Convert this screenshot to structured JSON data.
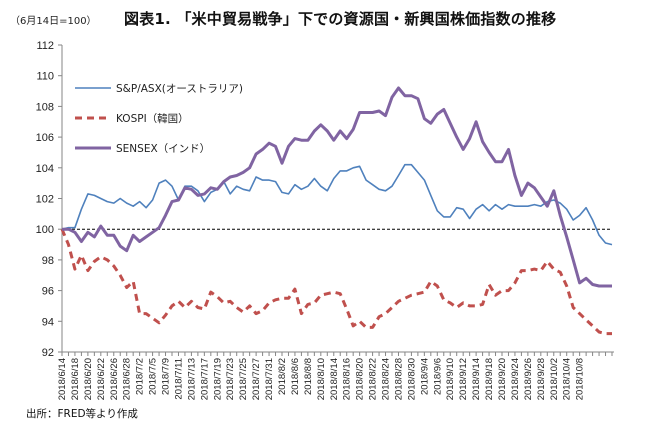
{
  "chart_data": {
    "type": "line",
    "title": "図表1. 「米中貿易戦争」下での資源国・新興国株価指数の推移",
    "subtitle": "（6月14日=100）",
    "source": "出所：FRED等より作成",
    "xlabel": "",
    "ylabel": "",
    "ylim": [
      92,
      112
    ],
    "yticks": [
      92,
      94,
      96,
      98,
      100,
      102,
      104,
      106,
      108,
      110,
      112
    ],
    "reference_line": {
      "value": 100,
      "style": "dashed",
      "color": "#000000"
    },
    "x_tick_labels": [
      "2018/6/14",
      "2018/6/18",
      "2018/6/20",
      "2018/6/22",
      "2018/6/26",
      "2018/6/28",
      "2018/7/2",
      "2018/7/5",
      "2018/7/9",
      "2018/7/11",
      "2018/7/13",
      "2018/7/17",
      "2018/7/19",
      "2018/7/23",
      "2018/7/25",
      "2018/7/27",
      "2018/7/31",
      "2018/8/2",
      "2018/8/6",
      "2018/8/8",
      "2018/8/10",
      "2018/8/14",
      "2018/8/16",
      "2018/8/20",
      "2018/8/22",
      "2018/8/24",
      "2018/8/28",
      "2018/8/30",
      "2018/9/4",
      "2018/9/6",
      "2018/9/10",
      "2018/9/12",
      "2018/9/14",
      "2018/9/18",
      "2018/9/20",
      "2018/9/24",
      "2018/9/26",
      "2018/9/28",
      "2018/10/2",
      "2018/10/4",
      "2018/10/8"
    ],
    "num_points": 86,
    "label_every": 2,
    "legend": {
      "placement": "top-left"
    },
    "grid": false,
    "series": [
      {
        "name": "S&P/ASX(オーストラリア)",
        "color": "#4F81BD",
        "style": "solid",
        "values": [
          100.0,
          100.1,
          100.1,
          101.3,
          102.3,
          102.2,
          102.0,
          101.8,
          101.7,
          102.0,
          101.7,
          101.5,
          101.8,
          101.4,
          101.9,
          103.0,
          103.2,
          102.8,
          101.9,
          102.8,
          102.8,
          102.5,
          101.8,
          102.4,
          102.6,
          103.1,
          102.3,
          102.8,
          102.6,
          102.5,
          103.4,
          103.2,
          103.2,
          103.1,
          102.4,
          102.3,
          102.9,
          102.6,
          102.8,
          103.3,
          102.8,
          102.5,
          103.3,
          103.8,
          103.8,
          104.0,
          104.1,
          103.2,
          102.9,
          102.6,
          102.5,
          102.8,
          103.5,
          104.2,
          104.2,
          103.7,
          103.2,
          102.2,
          101.2,
          100.8,
          100.8,
          101.4,
          101.3,
          100.7,
          101.3,
          101.6,
          101.2,
          101.6,
          101.3,
          101.6,
          101.5,
          101.5,
          101.5,
          101.6,
          101.5,
          101.8,
          101.9,
          101.7,
          101.3,
          100.6,
          100.9,
          101.4,
          100.6,
          99.6,
          99.1,
          99.0
        ]
      },
      {
        "name": "KOSPI（韓国）",
        "color": "#C0504D",
        "style": "dashed",
        "values": [
          100.0,
          99.0,
          97.4,
          98.3,
          97.3,
          97.9,
          98.2,
          98.0,
          97.6,
          97.0,
          96.2,
          96.6,
          94.5,
          94.5,
          94.2,
          93.9,
          94.4,
          95.0,
          95.3,
          94.9,
          95.3,
          94.9,
          94.8,
          95.9,
          95.6,
          95.2,
          95.3,
          94.9,
          94.6,
          95.0,
          94.5,
          94.7,
          95.2,
          95.4,
          95.5,
          95.5,
          96.1,
          94.5,
          95.1,
          95.2,
          95.7,
          95.8,
          95.9,
          95.8,
          94.8,
          93.7,
          94.0,
          93.6,
          93.6,
          94.3,
          94.5,
          94.9,
          95.3,
          95.5,
          95.7,
          95.8,
          95.9,
          96.6,
          96.3,
          95.4,
          95.2,
          94.9,
          95.2,
          95.0,
          95.0,
          95.1,
          96.4,
          95.7,
          96.0,
          96.0,
          96.5,
          97.3,
          97.3,
          97.4,
          97.3,
          97.9,
          97.4,
          97.2,
          96.3,
          94.9,
          94.5,
          94.1,
          93.7,
          93.3,
          93.2,
          93.2
        ]
      },
      {
        "name": "SENSEX（インド）",
        "color": "#8064A2",
        "style": "solid",
        "values": [
          100.0,
          100.0,
          99.8,
          99.2,
          99.8,
          99.5,
          100.2,
          99.6,
          99.6,
          98.9,
          98.6,
          99.6,
          99.2,
          99.5,
          99.8,
          100.1,
          100.9,
          101.8,
          101.9,
          102.7,
          102.6,
          102.2,
          102.3,
          102.7,
          102.6,
          103.1,
          103.4,
          103.5,
          103.7,
          104.0,
          104.9,
          105.2,
          105.6,
          105.4,
          104.3,
          105.4,
          105.9,
          105.8,
          105.8,
          106.4,
          106.8,
          106.4,
          105.8,
          106.4,
          105.9,
          106.5,
          107.6,
          107.6,
          107.6,
          107.7,
          107.4,
          108.6,
          109.2,
          108.7,
          108.7,
          108.5,
          107.2,
          106.9,
          107.5,
          107.8,
          106.9,
          106.0,
          105.2,
          105.9,
          107.0,
          105.7,
          105.0,
          104.4,
          104.4,
          105.2,
          103.5,
          102.2,
          103.0,
          102.7,
          102.1,
          101.5,
          102.5,
          100.9,
          99.5,
          98.0,
          96.5,
          96.8,
          96.4,
          96.3,
          96.3,
          96.3
        ]
      }
    ]
  }
}
